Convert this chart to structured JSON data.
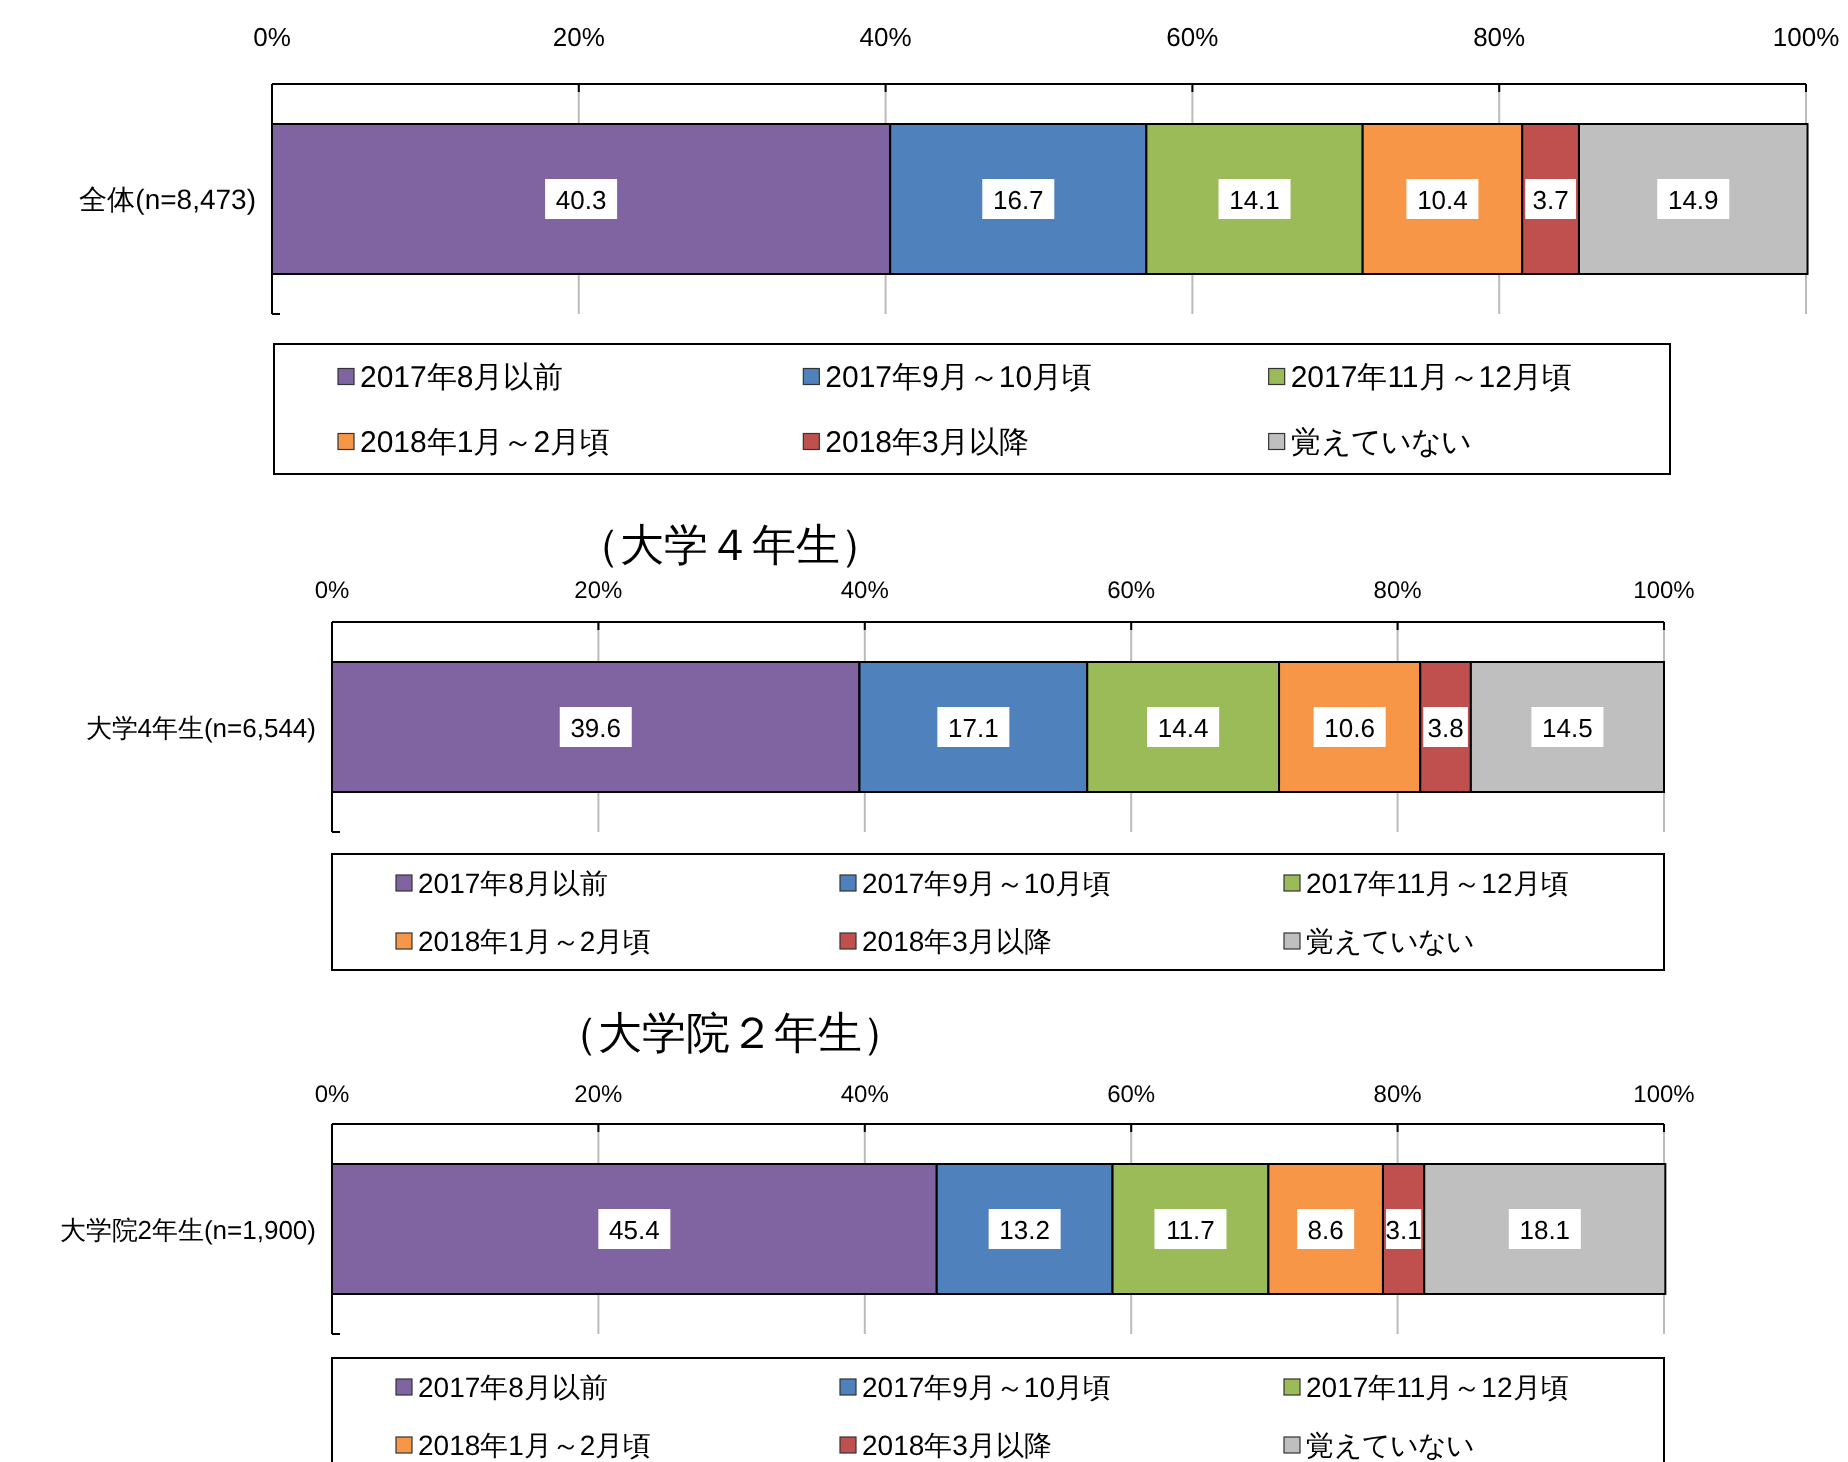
{
  "chart_data": [
    {
      "type": "bar",
      "orientation": "horizontal",
      "stacked": true,
      "categories": [
        "全体(n=8,473)"
      ],
      "series": [
        {
          "name": "2017年8月以前",
          "color": "#8064a2",
          "values": [
            40.3
          ]
        },
        {
          "name": "2017年9月～10月頃",
          "color": "#4f81bd",
          "values": [
            16.7
          ]
        },
        {
          "name": "2017年11月～12月頃",
          "color": "#9bbb59",
          "values": [
            14.1
          ]
        },
        {
          "name": "2018年1月～2月頃",
          "color": "#f79646",
          "values": [
            10.4
          ]
        },
        {
          "name": "2018年3月以降",
          "color": "#c0504d",
          "values": [
            3.7
          ]
        },
        {
          "name": "覚えていない",
          "color": "#bfbfbf",
          "values": [
            14.9
          ]
        }
      ],
      "xlim": [
        0,
        100
      ],
      "xticks": [
        {
          "value": 0,
          "label": "0%"
        },
        {
          "value": 20,
          "label": "20%"
        },
        {
          "value": 40,
          "label": "40%"
        },
        {
          "value": 60,
          "label": "60%"
        },
        {
          "value": 80,
          "label": "80%"
        },
        {
          "value": 100,
          "label": "100%"
        }
      ],
      "grid": "x",
      "legend": "bottom",
      "data_labels": true
    },
    {
      "type": "bar",
      "orientation": "horizontal",
      "stacked": true,
      "title": "（大学４年生）",
      "categories": [
        "大学4年生(n=6,544)"
      ],
      "series": [
        {
          "name": "2017年8月以前",
          "color": "#8064a2",
          "values": [
            39.6
          ]
        },
        {
          "name": "2017年9月～10月頃",
          "color": "#4f81bd",
          "values": [
            17.1
          ]
        },
        {
          "name": "2017年11月～12月頃",
          "color": "#9bbb59",
          "values": [
            14.4
          ]
        },
        {
          "name": "2018年1月～2月頃",
          "color": "#f79646",
          "values": [
            10.6
          ]
        },
        {
          "name": "2018年3月以降",
          "color": "#c0504d",
          "values": [
            3.8
          ]
        },
        {
          "name": "覚えていない",
          "color": "#bfbfbf",
          "values": [
            14.5
          ]
        }
      ],
      "xlim": [
        0,
        100
      ],
      "xticks": [
        {
          "value": 0,
          "label": "0%"
        },
        {
          "value": 20,
          "label": "20%"
        },
        {
          "value": 40,
          "label": "40%"
        },
        {
          "value": 60,
          "label": "60%"
        },
        {
          "value": 80,
          "label": "80%"
        },
        {
          "value": 100,
          "label": "100%"
        }
      ],
      "grid": "x",
      "legend": "bottom",
      "data_labels": true
    },
    {
      "type": "bar",
      "orientation": "horizontal",
      "stacked": true,
      "title": "（大学院２年生）",
      "categories": [
        "大学院2年生(n=1,900)"
      ],
      "series": [
        {
          "name": "2017年8月以前",
          "color": "#8064a2",
          "values": [
            45.4
          ]
        },
        {
          "name": "2017年9月～10月頃",
          "color": "#4f81bd",
          "values": [
            13.2
          ]
        },
        {
          "name": "2017年11月～12月頃",
          "color": "#9bbb59",
          "values": [
            11.7
          ]
        },
        {
          "name": "2018年1月～2月頃",
          "color": "#f79646",
          "values": [
            8.6
          ]
        },
        {
          "name": "2018年3月以降",
          "color": "#c0504d",
          "values": [
            3.1
          ]
        },
        {
          "name": "覚えていない",
          "color": "#bfbfbf",
          "values": [
            18.1
          ]
        }
      ],
      "xlim": [
        0,
        100
      ],
      "xticks": [
        {
          "value": 0,
          "label": "0%"
        },
        {
          "value": 20,
          "label": "20%"
        },
        {
          "value": 40,
          "label": "40%"
        },
        {
          "value": 60,
          "label": "60%"
        },
        {
          "value": 80,
          "label": "80%"
        },
        {
          "value": 100,
          "label": "100%"
        }
      ],
      "grid": "x",
      "legend": "bottom",
      "data_labels": true
    }
  ]
}
